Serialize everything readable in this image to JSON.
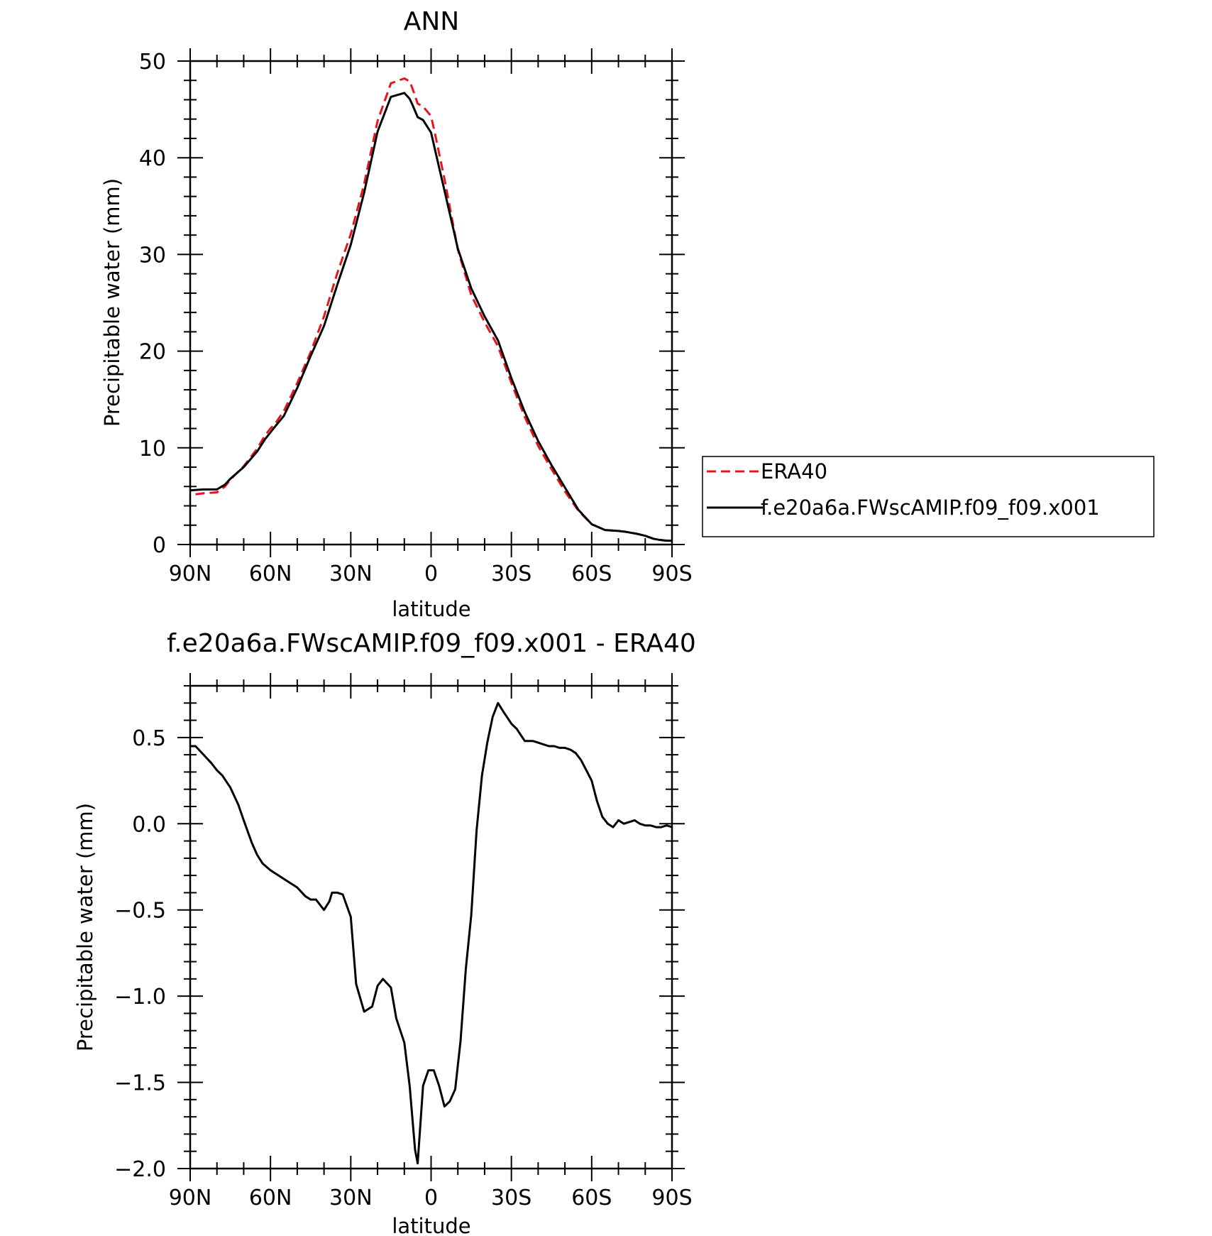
{
  "chart_data": [
    {
      "type": "line",
      "title": "ANN",
      "xlabel": "latitude",
      "ylabel": "Precipitable water (mm)",
      "xlim": [
        90,
        -90
      ],
      "ylim": [
        0,
        50
      ],
      "xticks": [
        90,
        60,
        30,
        0,
        -30,
        -60,
        -90
      ],
      "xtick_labels": [
        "90N",
        "60N",
        "30N",
        "0",
        "30S",
        "60S",
        "90S"
      ],
      "yticks": [
        0,
        10,
        20,
        30,
        40,
        50
      ],
      "ytick_labels": [
        "0",
        "10",
        "20",
        "30",
        "40",
        "50"
      ],
      "legend": "right",
      "series": [
        {
          "name": "ERA40",
          "color": "#e8141d",
          "dash": "dashed",
          "x": [
            88,
            85,
            80,
            77,
            75,
            70,
            65,
            62,
            60,
            58,
            55,
            50,
            45,
            40,
            35,
            30,
            25,
            20,
            15,
            10,
            8,
            7,
            5,
            3,
            0,
            -2,
            -5,
            -10,
            -15,
            -20,
            -25,
            -30,
            -35,
            -40,
            -45,
            -50,
            -55,
            -60,
            -65,
            -70,
            -73,
            -77,
            -80,
            -83,
            -85,
            -88,
            -90
          ],
          "y": [
            5.2,
            5.3,
            5.4,
            6.0,
            6.7,
            8.1,
            9.9,
            11.3,
            12.0,
            12.6,
            13.8,
            16.7,
            19.9,
            23.6,
            28.1,
            32.1,
            37.3,
            43.8,
            47.7,
            48.2,
            47.9,
            47.2,
            45.6,
            45.3,
            44.3,
            41.8,
            37.8,
            30.5,
            25.8,
            23.0,
            20.5,
            16.7,
            13.2,
            10.2,
            7.8,
            5.5,
            3.5,
            2.1,
            1.5,
            1.4,
            1.3,
            1.1,
            0.9,
            0.6,
            0.5,
            0.4,
            0.4
          ]
        },
        {
          "name": "f.e20a6a.FWscAMIP.f09_f09.x001",
          "color": "#000000",
          "dash": "solid",
          "x": [
            90,
            85,
            80,
            77,
            75,
            70,
            65,
            62,
            60,
            58,
            55,
            50,
            45,
            40,
            35,
            30,
            25,
            20,
            15,
            10,
            8,
            7,
            5,
            3,
            0,
            -2,
            -5,
            -10,
            -15,
            -20,
            -25,
            -30,
            -35,
            -40,
            -45,
            -50,
            -55,
            -60,
            -65,
            -70,
            -73,
            -77,
            -80,
            -83,
            -85,
            -88,
            -90
          ],
          "y": [
            5.6,
            5.7,
            5.7,
            6.2,
            6.8,
            8.0,
            9.6,
            10.9,
            11.6,
            12.3,
            13.3,
            16.2,
            19.5,
            22.6,
            26.9,
            31.0,
            36.4,
            42.7,
            46.3,
            46.7,
            46.1,
            45.5,
            44.2,
            43.9,
            42.6,
            40.2,
            36.6,
            30.6,
            26.5,
            23.6,
            21.1,
            17.2,
            13.7,
            10.7,
            8.2,
            5.9,
            3.6,
            2.1,
            1.5,
            1.4,
            1.3,
            1.1,
            0.9,
            0.6,
            0.5,
            0.4,
            0.4
          ]
        }
      ]
    },
    {
      "type": "line",
      "title": "f.e20a6a.FWscAMIP.f09_f09.x001 - ERA40",
      "xlabel": "latitude",
      "ylabel": "Precipitable water (mm)",
      "xlim": [
        90,
        -90
      ],
      "ylim": [
        -2.0,
        0.8
      ],
      "xticks": [
        90,
        60,
        30,
        0,
        -30,
        -60,
        -90
      ],
      "xtick_labels": [
        "90N",
        "60N",
        "30N",
        "0",
        "30S",
        "60S",
        "90S"
      ],
      "yticks": [
        -2.0,
        -1.5,
        -1.0,
        -0.5,
        0.0,
        0.5
      ],
      "ytick_labels": [
        "−2.0",
        "−1.5",
        "−1.0",
        "−0.5",
        "0.0",
        "0.5"
      ],
      "series": [
        {
          "color": "#000000",
          "dash": "solid",
          "x": [
            90,
            88,
            85,
            82,
            80,
            78,
            75,
            72,
            70,
            67,
            65,
            63,
            60,
            57,
            55,
            52,
            50,
            47,
            45,
            43,
            40,
            38,
            37,
            35,
            33,
            30,
            28,
            25,
            22,
            20,
            18,
            15,
            13,
            10,
            8,
            6,
            5,
            3,
            1,
            -1,
            -3,
            -5,
            -7,
            -9,
            -11,
            -13,
            -15,
            -17,
            -19,
            -21,
            -23,
            -25,
            -27,
            -30,
            -32,
            -35,
            -37,
            -38,
            -40,
            -42,
            -44,
            -46,
            -48,
            -50,
            -52,
            -54,
            -56,
            -58,
            -60,
            -62,
            -64,
            -66,
            -68,
            -70,
            -72,
            -74,
            -76,
            -78,
            -80,
            -82,
            -84,
            -86,
            -88,
            -90
          ],
          "y": [
            0.45,
            0.45,
            0.4,
            0.35,
            0.31,
            0.28,
            0.21,
            0.11,
            0.02,
            -0.11,
            -0.18,
            -0.23,
            -0.27,
            -0.3,
            -0.32,
            -0.35,
            -0.37,
            -0.42,
            -0.44,
            -0.44,
            -0.5,
            -0.45,
            -0.4,
            -0.4,
            -0.41,
            -0.54,
            -0.93,
            -1.09,
            -1.06,
            -0.94,
            -0.9,
            -0.95,
            -1.13,
            -1.27,
            -1.52,
            -1.89,
            -1.97,
            -1.52,
            -1.43,
            -1.43,
            -1.52,
            -1.64,
            -1.61,
            -1.54,
            -1.26,
            -0.84,
            -0.53,
            -0.04,
            0.28,
            0.47,
            0.62,
            0.7,
            0.65,
            0.58,
            0.55,
            0.48,
            0.48,
            0.48,
            0.47,
            0.46,
            0.45,
            0.45,
            0.44,
            0.44,
            0.43,
            0.41,
            0.37,
            0.31,
            0.25,
            0.13,
            0.04,
            0.0,
            -0.02,
            0.02,
            0.0,
            0.01,
            0.02,
            0.0,
            -0.01,
            -0.01,
            -0.02,
            -0.02,
            -0.01,
            -0.02
          ]
        }
      ]
    }
  ]
}
